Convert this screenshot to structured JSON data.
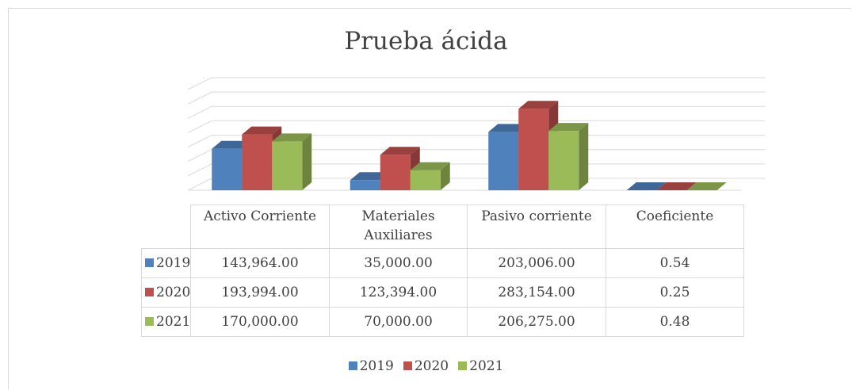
{
  "chart_data": {
    "type": "bar3d",
    "title": "Prueba ácida",
    "categories": [
      "Activo Corriente",
      "Materiales Auxiliares",
      "Pasivo corriente",
      "Coeficiente"
    ],
    "series": [
      {
        "name": "2019",
        "color": "#4f81bd",
        "values": [
          143964,
          35000,
          203006,
          0.54
        ],
        "value_labels": [
          "143,964.00",
          "35,000.00",
          "203,006.00",
          "0.54"
        ]
      },
      {
        "name": "2020",
        "color": "#c0504d",
        "values": [
          193994,
          123394,
          283154,
          0.25
        ],
        "value_labels": [
          "193,994.00",
          "123,394.00",
          "283,154.00",
          "0.25"
        ]
      },
      {
        "name": "2021",
        "color": "#9bbb59",
        "values": [
          170000,
          70000,
          206275,
          0.48
        ],
        "value_labels": [
          "170,000.00",
          "70,000.00",
          "206,275.00",
          "0.48"
        ]
      }
    ],
    "ylim": [
      0,
      350000
    ],
    "yticks": [
      0,
      50000,
      100000,
      150000,
      200000,
      250000,
      300000,
      350000
    ],
    "grid": true
  }
}
